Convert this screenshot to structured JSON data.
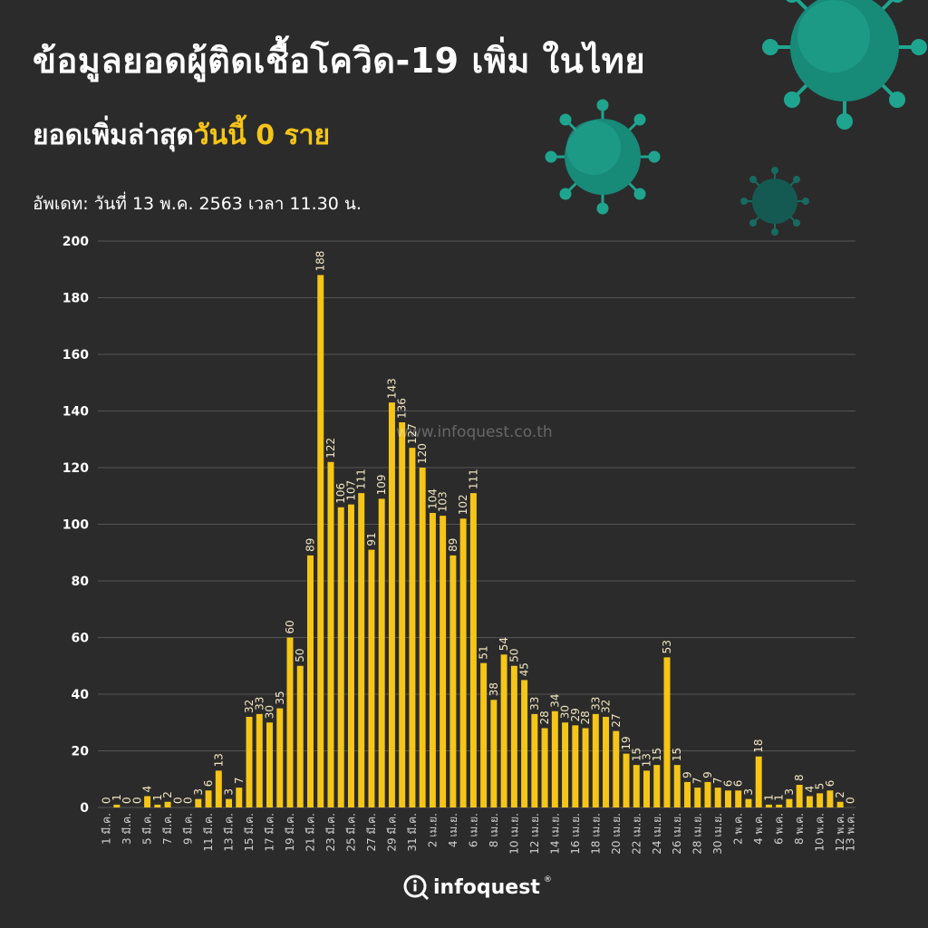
{
  "header": {
    "title": "ข้อมูลยอดผู้ติดเชื้อโควิด-19 เพิ่ม ในไทย",
    "subtitle_prefix": "ยอดเพิ่มล่าสุด",
    "subtitle_highlight": "วันนี้ 0 ราย",
    "updated": "อัพเดท: วันที่ 13 พ.ค. 2563 เวลา 11.30 น."
  },
  "watermark": "www.infoquest.co.th",
  "logo": {
    "name": "infoquest",
    "icon": "magnifier-i-icon"
  },
  "colors": {
    "background": "#2b2b2b",
    "bar": "#f5c518",
    "text": "#ffffff",
    "label": "#f0e6c0",
    "virus": "#1fa58f"
  },
  "decor": {
    "icons": [
      "virus-icon",
      "virus-icon",
      "virus-icon"
    ]
  },
  "chart_data": {
    "type": "bar",
    "title": "",
    "xlabel": "",
    "ylabel": "",
    "ylim": [
      0,
      200
    ],
    "yticks": [
      0,
      20,
      40,
      60,
      80,
      100,
      120,
      140,
      160,
      180,
      200
    ],
    "grid": true,
    "categories": [
      "1 มี.ค.",
      "2 มี.ค.",
      "3 มี.ค.",
      "4 มี.ค.",
      "5 มี.ค.",
      "6 มี.ค.",
      "7 มี.ค.",
      "8 มี.ค.",
      "9 มี.ค.",
      "10 มี.ค.",
      "11 มี.ค.",
      "12 มี.ค.",
      "13 มี.ค.",
      "14 มี.ค.",
      "15 มี.ค.",
      "16 มี.ค.",
      "17 มี.ค.",
      "18 มี.ค.",
      "19 มี.ค.",
      "20 มี.ค.",
      "21 มี.ค.",
      "22 มี.ค.",
      "23 มี.ค.",
      "24 มี.ค.",
      "25 มี.ค.",
      "26 มี.ค.",
      "27 มี.ค.",
      "28 มี.ค.",
      "29 มี.ค.",
      "30 มี.ค.",
      "31 มี.ค.",
      "1 เม.ย.",
      "2 เม.ย.",
      "3 เม.ย.",
      "4 เม.ย.",
      "5 เม.ย.",
      "6 เม.ย.",
      "7 เม.ย.",
      "8 เม.ย.",
      "9 เม.ย.",
      "10 เม.ย.",
      "11 เม.ย.",
      "12 เม.ย.",
      "13 เม.ย.",
      "14 เม.ย.",
      "15 เม.ย.",
      "16 เม.ย.",
      "17 เม.ย.",
      "18 เม.ย.",
      "19 เม.ย.",
      "20 เม.ย.",
      "21 เม.ย.",
      "22 เม.ย.",
      "23 เม.ย.",
      "24 เม.ย.",
      "25 เม.ย.",
      "26 เม.ย.",
      "27 เม.ย.",
      "28 เม.ย.",
      "29 เม.ย.",
      "30 เม.ย.",
      "1 พ.ค.",
      "2 พ.ค.",
      "3 พ.ค.",
      "4 พ.ค.",
      "5 พ.ค.",
      "6 พ.ค.",
      "7 พ.ค.",
      "8 พ.ค.",
      "9 พ.ค.",
      "10 พ.ค.",
      "11 พ.ค.",
      "12 พ.ค.",
      "13 พ.ค."
    ],
    "tick_labels": [
      "1 มี.ค.",
      "3 มี.ค.",
      "5 มี.ค.",
      "7 มี.ค.",
      "9 มี.ค.",
      "11 มี.ค.",
      "13 มี.ค.",
      "15 มี.ค.",
      "17 มี.ค.",
      "19 มี.ค.",
      "21 มี.ค.",
      "23 มี.ค.",
      "25 มี.ค.",
      "27 มี.ค.",
      "29 มี.ค.",
      "31 มี.ค.",
      "2 เม.ย.",
      "4 เม.ย.",
      "6 เม.ย.",
      "8 เม.ย.",
      "10 เม.ย.",
      "12 เม.ย.",
      "14 เม.ย.",
      "16 เม.ย.",
      "18 เม.ย.",
      "20 เม.ย.",
      "22 เม.ย.",
      "24 เม.ย.",
      "26 เม.ย.",
      "28 เม.ย.",
      "30 เม.ย.",
      "2 พ.ค.",
      "4 พ.ค.",
      "6 พ.ค.",
      "8 พ.ค.",
      "10 พ.ค.",
      "12 พ.ค.",
      "13 พ.ค."
    ],
    "values": [
      0,
      1,
      0,
      0,
      4,
      1,
      2,
      0,
      0,
      3,
      6,
      13,
      3,
      7,
      32,
      33,
      30,
      35,
      60,
      50,
      89,
      188,
      122,
      106,
      107,
      111,
      91,
      109,
      143,
      136,
      127,
      120,
      104,
      103,
      89,
      102,
      111,
      51,
      38,
      54,
      50,
      45,
      33,
      28,
      34,
      30,
      29,
      28,
      33,
      32,
      27,
      19,
      15,
      13,
      15,
      53,
      15,
      9,
      7,
      9,
      7,
      6,
      6,
      3,
      18,
      1,
      1,
      3,
      8,
      4,
      5,
      6,
      2,
      0
    ]
  }
}
